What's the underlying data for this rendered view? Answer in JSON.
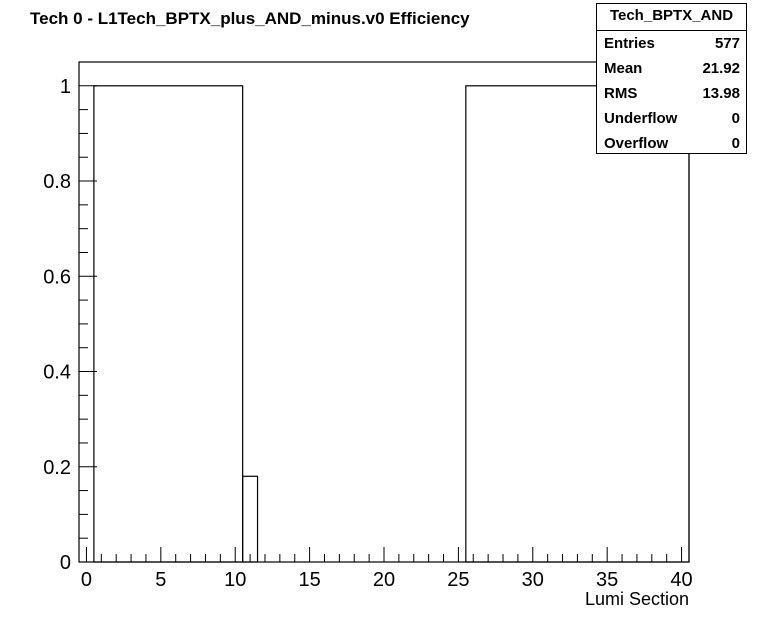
{
  "chart_data": {
    "type": "histogram",
    "title": "Tech 0 - L1Tech_BPTX_plus_AND_minus.v0 Efficiency",
    "xlabel": "Lumi Section",
    "ylabel": "",
    "xlim": [
      -0.5,
      40.5
    ],
    "ylim": [
      0,
      1.05
    ],
    "x_ticks": [
      0,
      5,
      10,
      15,
      20,
      25,
      30,
      35,
      40
    ],
    "y_ticks": [
      0,
      0.2,
      0.4,
      0.6,
      0.8,
      1
    ],
    "x_tick_labels": [
      "0",
      "5",
      "10",
      "15",
      "20",
      "25",
      "30",
      "35",
      "40"
    ],
    "y_tick_labels": [
      "0",
      "0.2",
      "0.4",
      "0.6",
      "0.8",
      "1"
    ],
    "bins": [
      {
        "x0": 0.5,
        "x1": 10.5,
        "value": 1.0
      },
      {
        "x0": 10.5,
        "x1": 11.5,
        "value": 0.18
      },
      {
        "x0": 11.5,
        "x1": 25.5,
        "value": 0
      },
      {
        "x0": 25.5,
        "x1": 40.5,
        "value": 1.0
      }
    ],
    "stats": {
      "name": "Tech_BPTX_AND",
      "rows": [
        {
          "label": "Entries",
          "value": "577"
        },
        {
          "label": "Mean",
          "value": "21.92"
        },
        {
          "label": "RMS",
          "value": "13.98"
        },
        {
          "label": "Underflow",
          "value": "0"
        },
        {
          "label": "Overflow",
          "value": "0"
        }
      ]
    },
    "grid": false,
    "legend": "top-right"
  }
}
